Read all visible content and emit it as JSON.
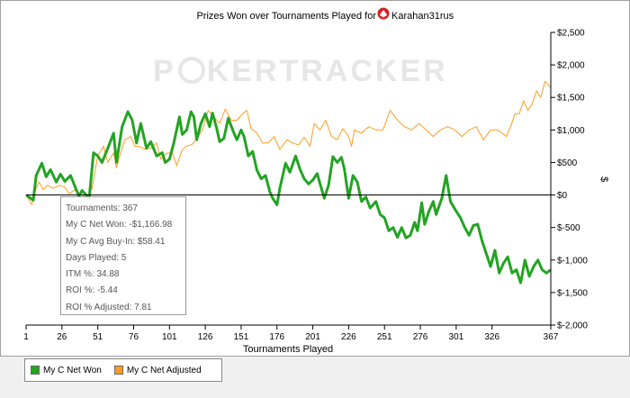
{
  "chart_data": {
    "type": "line",
    "title": "Prizes Won over Tournaments Played for",
    "player_name": "Karahan31rus",
    "watermark": "POKERTRACKER",
    "xlabel": "Tournaments Played",
    "ylabel": "$",
    "xlim": [
      1,
      367
    ],
    "ylim": [
      -2000,
      2500
    ],
    "x_ticks": [
      1,
      26,
      51,
      76,
      101,
      126,
      151,
      176,
      201,
      226,
      251,
      276,
      301,
      326,
      367
    ],
    "y_ticks": [
      {
        "value": 2500,
        "label": "$2,500"
      },
      {
        "value": 2000,
        "label": "$2,000"
      },
      {
        "value": 1500,
        "label": "$1,500"
      },
      {
        "value": 1000,
        "label": "$1,000"
      },
      {
        "value": 500,
        "label": "$500"
      },
      {
        "value": 0,
        "label": "$0"
      },
      {
        "value": -500,
        "label": "$-500"
      },
      {
        "value": -1000,
        "label": "$-1,000"
      },
      {
        "value": -1500,
        "label": "$-1,500"
      },
      {
        "value": -2000,
        "label": "$-2,000"
      }
    ],
    "zero_line": true,
    "legend_position": "bottom-left",
    "series": [
      {
        "name": "My C Net Won",
        "color": "#22a422",
        "x": [
          1,
          6,
          8,
          12,
          15,
          18,
          22,
          25,
          28,
          32,
          36,
          38,
          40,
          45,
          48,
          51,
          54,
          58,
          62,
          64,
          68,
          72,
          75,
          78,
          81,
          85,
          88,
          92,
          96,
          98,
          101,
          104,
          108,
          110,
          113,
          116,
          118,
          120,
          123,
          126,
          129,
          131,
          134,
          136,
          139,
          142,
          146,
          148,
          151,
          153,
          156,
          159,
          162,
          165,
          168,
          171,
          173,
          176,
          178,
          182,
          185,
          189,
          192,
          195,
          198,
          201,
          204,
          206,
          209,
          212,
          215,
          218,
          221,
          223,
          226,
          229,
          232,
          235,
          238,
          241,
          245,
          248,
          251,
          254,
          257,
          260,
          263,
          266,
          269,
          272,
          274,
          277,
          279,
          282,
          285,
          287,
          291,
          294,
          297,
          301,
          304,
          307,
          310,
          313,
          316,
          319,
          322,
          325,
          328,
          331,
          334,
          337,
          340,
          343,
          346,
          349,
          352,
          355,
          358,
          361,
          364,
          367
        ],
        "y": [
          0,
          -80,
          300,
          490,
          280,
          390,
          200,
          320,
          210,
          300,
          80,
          -20,
          70,
          -50,
          650,
          600,
          500,
          720,
          950,
          500,
          1050,
          1280,
          1150,
          800,
          1100,
          720,
          820,
          600,
          650,
          500,
          550,
          800,
          1200,
          930,
          1000,
          1280,
          1200,
          850,
          1100,
          1250,
          1050,
          1260,
          1020,
          820,
          870,
          1180,
          950,
          850,
          1000,
          900,
          600,
          670,
          380,
          250,
          300,
          50,
          -50,
          -150,
          100,
          490,
          350,
          600,
          400,
          250,
          170,
          230,
          330,
          180,
          -50,
          150,
          590,
          500,
          580,
          400,
          -50,
          300,
          200,
          -100,
          -30,
          -200,
          -100,
          -300,
          -350,
          -550,
          -500,
          -650,
          -500,
          -660,
          -620,
          -420,
          -550,
          -120,
          -450,
          -250,
          -100,
          -300,
          -50,
          300,
          -100,
          -250,
          -350,
          -500,
          -620,
          -470,
          -450,
          -700,
          -900,
          -1100,
          -850,
          -1200,
          -1050,
          -950,
          -1200,
          -1150,
          -1350,
          -1000,
          -1250,
          -1100,
          -1000,
          -1150,
          -1200,
          -1150
        ]
      },
      {
        "name": "My C Net Adjusted",
        "color": "#ff9c21",
        "x": [
          1,
          5,
          7,
          10,
          13,
          16,
          20,
          24,
          28,
          31,
          35,
          39,
          43,
          47,
          51,
          55,
          58,
          62,
          64,
          67,
          70,
          74,
          77,
          80,
          84,
          88,
          92,
          95,
          99,
          103,
          106,
          110,
          113,
          117,
          121,
          124,
          128,
          132,
          136,
          140,
          144,
          148,
          152,
          155,
          158,
          162,
          166,
          170,
          174,
          178,
          183,
          187,
          191,
          195,
          199,
          202,
          206,
          210,
          214,
          218,
          222,
          226,
          228,
          230,
          235,
          240,
          245,
          250,
          255,
          260,
          265,
          270,
          275,
          280,
          285,
          290,
          295,
          300,
          305,
          310,
          315,
          320,
          325,
          330,
          333,
          336,
          339,
          342,
          345,
          348,
          351,
          354,
          357,
          360,
          363,
          367
        ],
        "y": [
          0,
          -150,
          50,
          200,
          80,
          150,
          100,
          150,
          120,
          20,
          80,
          10,
          -40,
          100,
          600,
          750,
          500,
          650,
          420,
          650,
          850,
          900,
          750,
          750,
          700,
          720,
          800,
          550,
          640,
          650,
          450,
          700,
          750,
          780,
          900,
          1000,
          1300,
          1200,
          1100,
          1320,
          1150,
          1150,
          1250,
          1300,
          1020,
          950,
          800,
          800,
          900,
          700,
          850,
          800,
          770,
          890,
          750,
          1100,
          1000,
          1150,
          900,
          850,
          1020,
          900,
          750,
          1000,
          950,
          1050,
          1000,
          1000,
          1300,
          1150,
          1050,
          1000,
          1100,
          1000,
          900,
          1000,
          1050,
          1000,
          900,
          1000,
          1050,
          850,
          1000,
          1000,
          950,
          900,
          1050,
          1250,
          1250,
          1450,
          1300,
          1400,
          1600,
          1500,
          1750,
          1650
        ]
      }
    ]
  },
  "stats": {
    "tournaments": "Tournaments: 367",
    "net_won": "My C Net Won: -$1,166.98",
    "avg_buy_in": "My C Avg Buy-In: $58.41",
    "days_played": "Days Played: 5",
    "itm": "ITM %: 34.88",
    "roi": "ROI %: -5.44",
    "roi_adjusted": "ROI % Adjusted: 7.81"
  },
  "legend": {
    "net_won_label": "My C Net Won",
    "net_adjusted_label": "My C Net Adjusted"
  }
}
